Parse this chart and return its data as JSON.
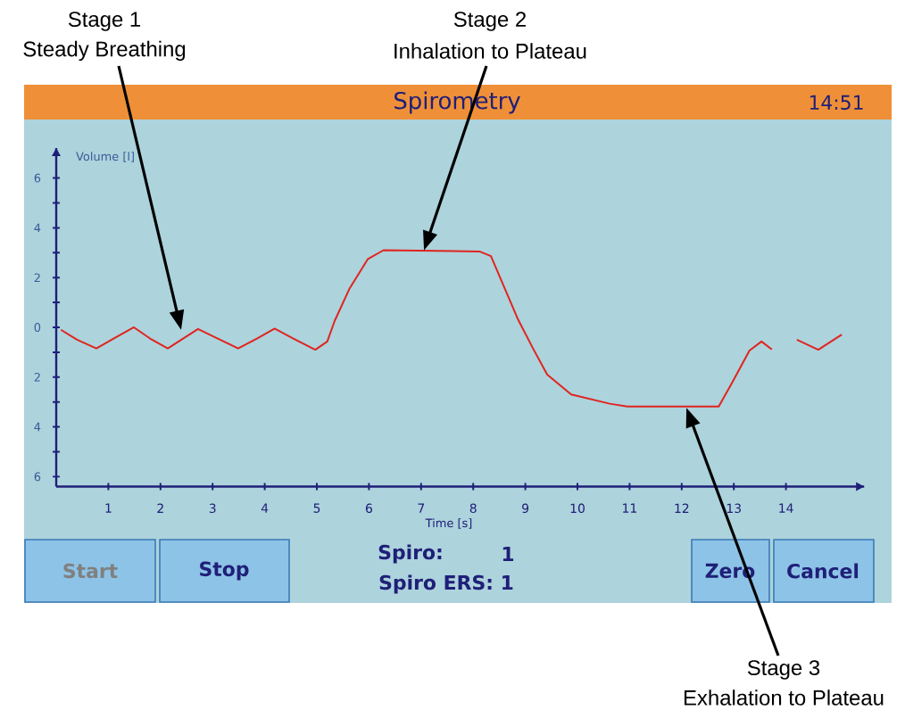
{
  "chart_data": {
    "type": "line",
    "title": "Spirometry",
    "xlabel": "Time [s]",
    "ylabel": "Volume [l]",
    "x": [
      0.09,
      0.4,
      0.77,
      1.1,
      1.49,
      1.8,
      2.14,
      2.4,
      2.72,
      3.1,
      3.49,
      3.85,
      4.19,
      4.55,
      4.97,
      5.2,
      5.34,
      5.63,
      5.98,
      6.28,
      8.12,
      8.34,
      8.85,
      9.14,
      9.42,
      9.88,
      10.62,
      10.96,
      12.71,
      12.96,
      13.3,
      13.53,
      13.73,
      14.0,
      14.21,
      14.62,
      15.07
    ],
    "values": [
      -0.1,
      -0.5,
      -0.85,
      -0.45,
      0,
      -0.45,
      -0.85,
      -0.5,
      -0.07,
      -0.45,
      -0.85,
      -0.45,
      -0.05,
      -0.45,
      -0.9,
      -0.57,
      0.25,
      1.57,
      2.75,
      3.1,
      3.05,
      2.86,
      0.36,
      -0.82,
      -1.9,
      -2.7,
      -3.07,
      -3.18,
      -3.18,
      -2.25,
      -0.93,
      -0.57,
      -0.89,
      null,
      -0.5,
      -0.9,
      -0.29
    ],
    "color": "#e0241f",
    "marker": "none",
    "xlim": [
      0,
      15.5
    ],
    "ylim": [
      -6.4,
      7.2
    ],
    "xticks": [
      1,
      2,
      3,
      4,
      5,
      6,
      7,
      8,
      9,
      10,
      11,
      12,
      13,
      14
    ],
    "yticks": [
      {
        "value": -6,
        "label": "6"
      },
      {
        "value": -5,
        "label": null
      },
      {
        "value": -4,
        "label": "4"
      },
      {
        "value": -3,
        "label": null
      },
      {
        "value": -2,
        "label": "2"
      },
      {
        "value": -1,
        "label": null
      },
      0,
      {
        "value": 1,
        "label": null
      },
      2,
      {
        "value": 3,
        "label": null
      },
      4,
      {
        "value": 5,
        "label": null
      },
      6
    ],
    "annotations": [
      "Stage 1",
      "Steady Breathing",
      "Stage 2",
      "Inhalation to Plateau",
      "Stage 3",
      "Exhalation to Plateau",
      "14:51",
      "Start",
      "Stop",
      "Spiro:",
      "1",
      "Spiro ERS: 1",
      "Zero",
      "Cancel"
    ]
  }
}
